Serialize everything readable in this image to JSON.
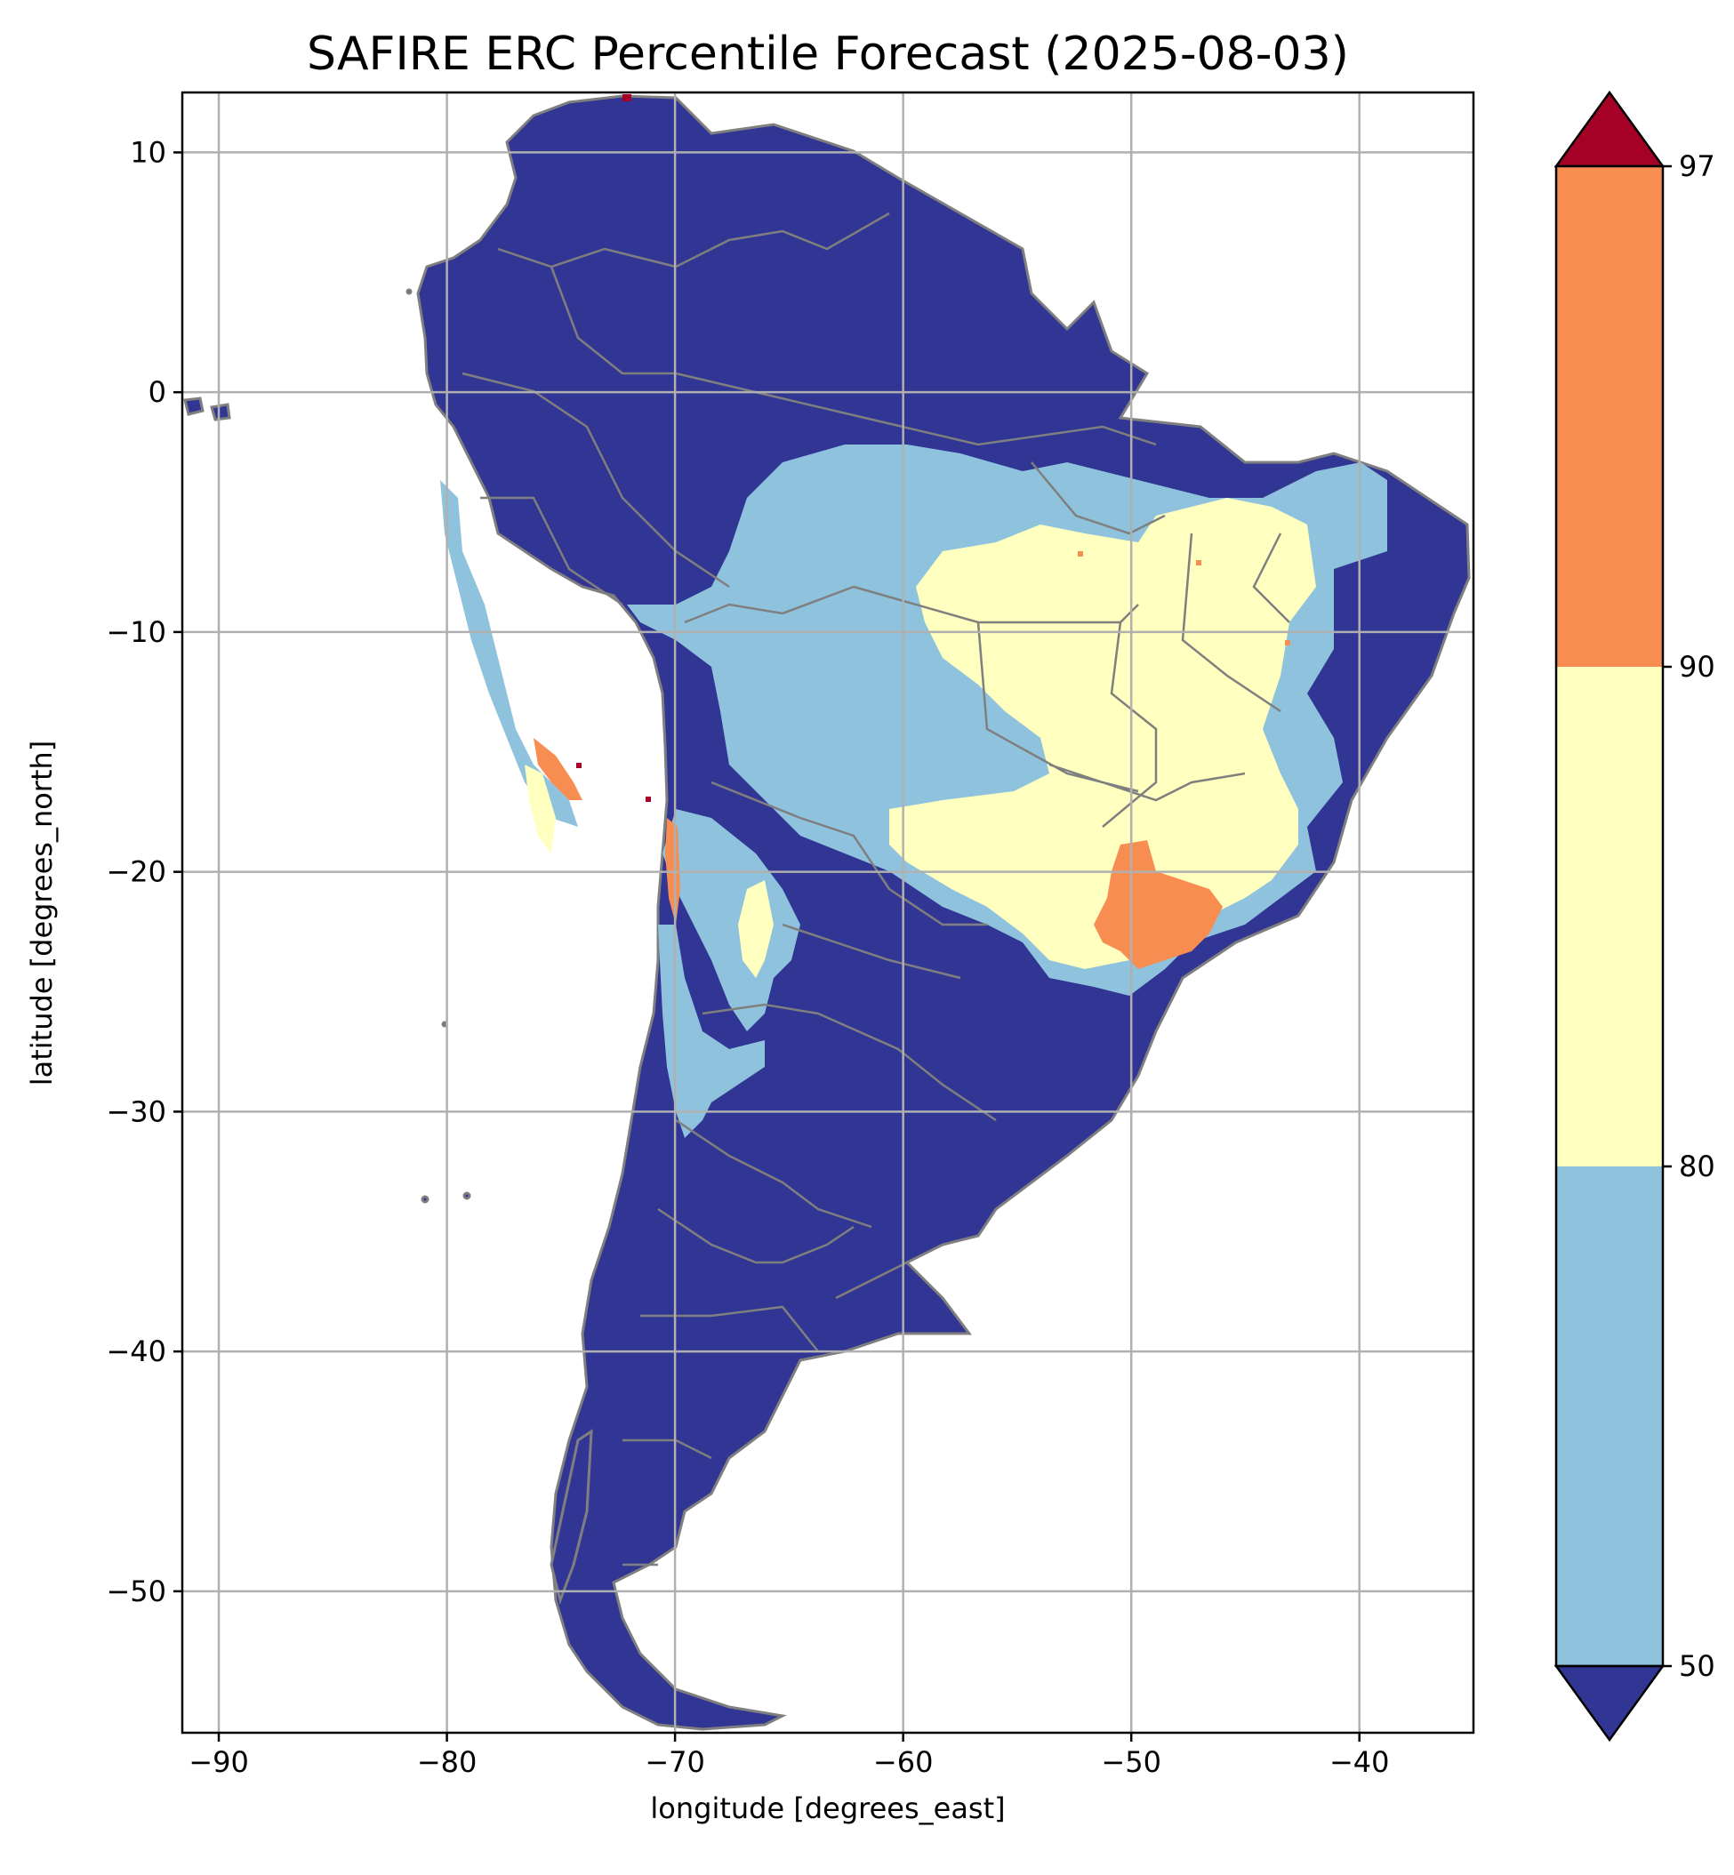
{
  "title": "SAFIRE ERC Percentile Forecast (2025-08-03)",
  "xlabel": "longitude [degrees_east]",
  "ylabel": "latitude [degrees_north]",
  "x_ticks": [
    {
      "value": -90,
      "label": "−90"
    },
    {
      "value": -80,
      "label": "−80"
    },
    {
      "value": -70,
      "label": "−70"
    },
    {
      "value": -60,
      "label": "−60"
    },
    {
      "value": -50,
      "label": "−50"
    },
    {
      "value": -40,
      "label": "−40"
    }
  ],
  "y_ticks": [
    {
      "value": 10,
      "label": "10"
    },
    {
      "value": 0,
      "label": "0"
    },
    {
      "value": -10,
      "label": "−10"
    },
    {
      "value": -20,
      "label": "−20"
    },
    {
      "value": -30,
      "label": "−30"
    },
    {
      "value": -40,
      "label": "−40"
    },
    {
      "value": -50,
      "label": "−50"
    }
  ],
  "extent": {
    "lon": [
      -91.6,
      -35.0
    ],
    "lat": [
      -55.9,
      12.5
    ]
  },
  "colorbar": {
    "ticks": [
      "50",
      "80",
      "90",
      "97"
    ],
    "colors": {
      "below_50": "#313695",
      "50_80": "#8fc3dd",
      "80_90": "#ffffbf",
      "90_97": "#f88d52",
      "above_97": "#a50026"
    },
    "extend": "both"
  },
  "map": {
    "ocean_color": "#ffffff",
    "border_color": "#7f7f7f",
    "grid_color": "#b0b0b0"
  }
}
